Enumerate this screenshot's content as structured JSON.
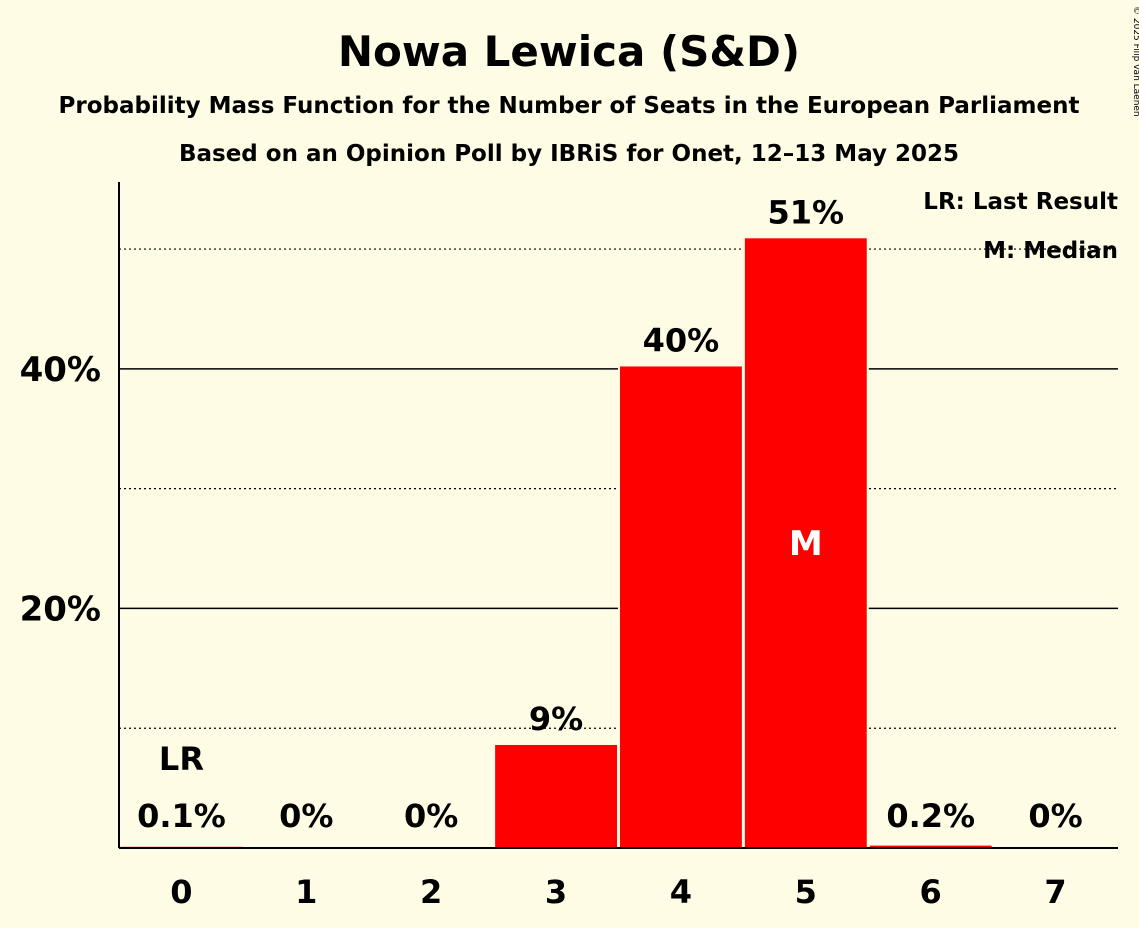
{
  "chart_data": {
    "type": "bar",
    "title": "Nowa Lewica (S&D)",
    "subtitle": "Probability Mass Function for the Number of Seats in the European Parliament",
    "subtitle2": "Based on an Opinion Poll by IBRiS for Onet, 12–13 May 2025",
    "copyright": "© 2025 Filip van Laenen",
    "categories": [
      "0",
      "1",
      "2",
      "3",
      "4",
      "5",
      "6",
      "7"
    ],
    "values": [
      0.1,
      0,
      0,
      8.6,
      40.2,
      50.9,
      0.2,
      0
    ],
    "value_labels": [
      "0.1%",
      "0%",
      "0%",
      "9%",
      "40%",
      "51%",
      "0.2%",
      "0%"
    ],
    "y_ticks": [
      20,
      40
    ],
    "y_tick_labels": [
      "20%",
      "40%"
    ],
    "y_minor_gridlines": [
      10,
      30,
      50
    ],
    "ylim": [
      0,
      55.6
    ],
    "last_result_index": 0,
    "last_result_label": "LR",
    "median_index": 5,
    "median_label": "M",
    "legend": [
      "LR: Last Result",
      "M: Median"
    ],
    "legend_position": "top-right",
    "bar_color": "#FF0000",
    "background_color": "#FEFCE4"
  }
}
